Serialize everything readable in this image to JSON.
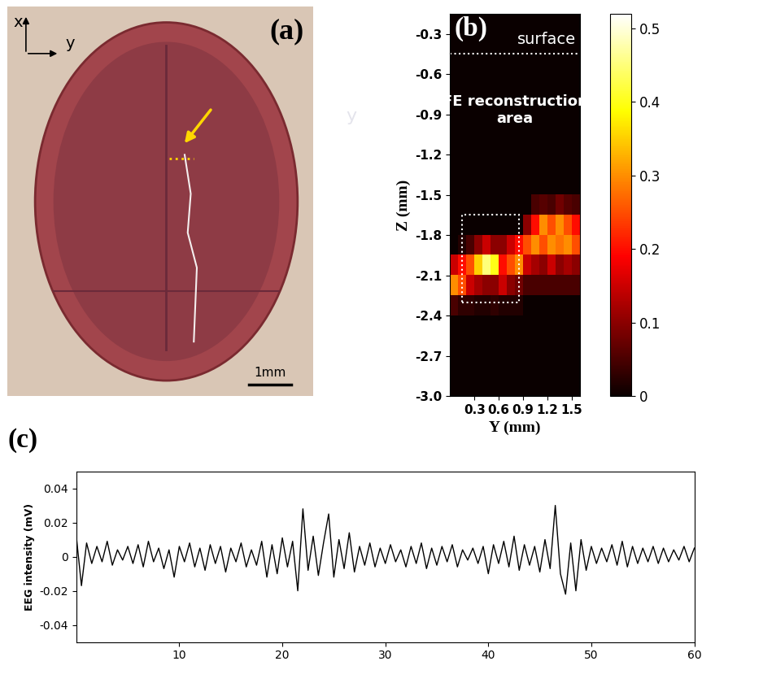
{
  "chart_data": [
    {
      "type": "image",
      "title": "(a)",
      "axis_labels": {
        "x": "x",
        "y": "y"
      },
      "scale_bar": "1mm",
      "annotations": [
        "y"
      ]
    },
    {
      "type": "heatmap",
      "title": "(b)",
      "x_label": "Y (mm)",
      "y_label": "Z (mm)",
      "xlim": [
        0,
        1.6
      ],
      "ylim": [
        -3.0,
        -0.15
      ],
      "xticks": [
        0.3,
        0.6,
        0.9,
        1.2,
        1.5
      ],
      "yticks": [
        -0.3,
        -0.6,
        -0.9,
        -1.2,
        -1.5,
        -1.8,
        -2.1,
        -2.4,
        -2.7,
        -3.0
      ],
      "annotations": [
        "surface",
        "FE reconstruction area"
      ],
      "surface_level": -0.45,
      "box": {
        "y": [
          0.15,
          0.85
        ],
        "z": [
          -2.3,
          -1.65
        ]
      },
      "colorbar": {
        "range": [
          0,
          0.52
        ],
        "ticks": [
          0,
          0.1,
          0.2,
          0.3,
          0.4,
          0.5
        ]
      },
      "cells": [
        [
          0,
          0,
          0,
          0,
          0,
          0,
          0,
          0,
          0,
          0,
          0,
          0,
          0,
          0,
          0,
          0
        ],
        [
          0,
          0,
          0,
          0,
          0,
          0,
          0,
          0,
          0,
          0,
          0,
          0,
          0,
          0,
          0,
          0
        ],
        [
          0,
          0,
          0,
          0,
          0,
          0,
          0,
          0,
          0,
          0,
          0,
          0,
          0,
          0,
          0,
          0
        ],
        [
          0,
          0,
          0,
          0,
          0,
          0,
          0,
          0,
          0,
          0,
          0,
          0,
          0,
          0,
          0,
          0
        ],
        [
          0,
          0,
          0,
          0,
          0,
          0,
          0,
          0,
          0,
          0,
          0,
          0,
          0,
          0,
          0,
          0
        ],
        [
          0,
          0,
          0,
          0,
          0,
          0,
          0,
          0,
          0,
          0,
          0,
          0,
          0,
          0,
          0,
          0
        ],
        [
          0,
          0,
          0,
          0,
          0,
          0,
          0,
          0,
          0,
          0,
          0,
          0,
          0,
          0,
          0,
          0
        ],
        [
          0,
          0,
          0,
          0,
          0,
          0,
          0,
          0,
          0,
          0,
          0,
          0,
          0,
          0,
          0,
          0
        ],
        [
          0,
          0,
          0,
          0,
          0,
          0,
          0,
          0,
          0,
          0,
          0,
          0,
          0,
          0,
          0,
          0
        ],
        [
          0,
          0,
          0,
          0,
          0,
          0,
          0,
          0,
          0,
          0,
          0.05,
          0.06,
          0.05,
          0.08,
          0.06,
          0.05
        ],
        [
          0,
          0,
          0,
          0,
          0,
          0,
          0,
          0,
          0,
          0.1,
          0.2,
          0.3,
          0.25,
          0.3,
          0.25,
          0.2
        ],
        [
          0,
          0.02,
          0.05,
          0.1,
          0.15,
          0.1,
          0.1,
          0.15,
          0.2,
          0.25,
          0.3,
          0.25,
          0.3,
          0.28,
          0.3,
          0.25
        ],
        [
          0.15,
          0.2,
          0.25,
          0.35,
          0.45,
          0.4,
          0.2,
          0.25,
          0.3,
          0.15,
          0.12,
          0.1,
          0.15,
          0.1,
          0.12,
          0.1
        ],
        [
          0.3,
          0.25,
          0.15,
          0.12,
          0.1,
          0.1,
          0.15,
          0.1,
          0.08,
          0.05,
          0.05,
          0.05,
          0.05,
          0.05,
          0.05,
          0.05
        ],
        [
          0.05,
          0.03,
          0.03,
          0.02,
          0.02,
          0.03,
          0.02,
          0.02,
          0.02,
          0,
          0,
          0,
          0,
          0,
          0,
          0
        ],
        [
          0,
          0,
          0,
          0,
          0,
          0,
          0,
          0,
          0,
          0,
          0,
          0,
          0,
          0,
          0,
          0
        ],
        [
          0,
          0,
          0,
          0,
          0,
          0,
          0,
          0,
          0,
          0,
          0,
          0,
          0,
          0,
          0,
          0
        ],
        [
          0,
          0,
          0,
          0,
          0,
          0,
          0,
          0,
          0,
          0,
          0,
          0,
          0,
          0,
          0,
          0
        ],
        [
          0,
          0,
          0,
          0,
          0,
          0,
          0,
          0,
          0,
          0,
          0,
          0,
          0,
          0,
          0,
          0
        ]
      ]
    },
    {
      "type": "line",
      "title": "(c)",
      "y_label": "EEG intensity (mV)",
      "color": "#000000",
      "xlim": [
        0,
        60
      ],
      "ylim": [
        -0.05,
        0.05
      ],
      "xticks": [
        10,
        20,
        30,
        40,
        50,
        60
      ],
      "yticks": [
        -0.04,
        -0.02,
        0,
        0.02,
        0.04
      ],
      "x": [
        0,
        0.5,
        1,
        1.5,
        2,
        2.5,
        3,
        3.5,
        4,
        4.5,
        5,
        5.5,
        6,
        6.5,
        7,
        7.5,
        8,
        8.5,
        9,
        9.5,
        10,
        10.5,
        11,
        11.5,
        12,
        12.5,
        13,
        13.5,
        14,
        14.5,
        15,
        15.5,
        16,
        16.5,
        17,
        17.5,
        18,
        18.5,
        19,
        19.5,
        20,
        20.5,
        21,
        21.5,
        22,
        22.5,
        23,
        23.5,
        24,
        24.5,
        25,
        25.5,
        26,
        26.5,
        27,
        27.5,
        28,
        28.5,
        29,
        29.5,
        30,
        30.5,
        31,
        31.5,
        32,
        32.5,
        33,
        33.5,
        34,
        34.5,
        35,
        35.5,
        36,
        36.5,
        37,
        37.5,
        38,
        38.5,
        39,
        39.5,
        40,
        40.5,
        41,
        41.5,
        42,
        42.5,
        43,
        43.5,
        44,
        44.5,
        45,
        45.5,
        46,
        46.5,
        47,
        47.5,
        48,
        48.5,
        49,
        49.5,
        50,
        50.5,
        51,
        51.5,
        52,
        52.5,
        53,
        53.5,
        54,
        54.5,
        55,
        55.5,
        56,
        56.5,
        57,
        57.5,
        58,
        58.5,
        59,
        59.5,
        60
      ],
      "values": [
        0.012,
        -0.017,
        0.008,
        -0.004,
        0.006,
        -0.003,
        0.009,
        -0.005,
        0.004,
        -0.002,
        0.006,
        -0.004,
        0.007,
        -0.006,
        0.009,
        -0.003,
        0.005,
        -0.007,
        0.004,
        -0.012,
        0.006,
        -0.003,
        0.008,
        -0.006,
        0.005,
        -0.008,
        0.007,
        -0.004,
        0.006,
        -0.009,
        0.005,
        -0.003,
        0.008,
        -0.006,
        0.004,
        -0.005,
        0.009,
        -0.012,
        0.007,
        -0.01,
        0.011,
        -0.006,
        0.009,
        -0.02,
        0.028,
        -0.008,
        0.012,
        -0.011,
        0.008,
        0.025,
        -0.012,
        0.01,
        -0.007,
        0.014,
        -0.009,
        0.006,
        -0.005,
        0.008,
        -0.006,
        0.005,
        -0.004,
        0.007,
        -0.003,
        0.004,
        -0.006,
        0.006,
        -0.004,
        0.008,
        -0.007,
        0.005,
        -0.005,
        0.006,
        -0.003,
        0.007,
        -0.006,
        0.004,
        -0.002,
        0.005,
        -0.004,
        0.006,
        -0.01,
        0.007,
        -0.004,
        0.009,
        -0.006,
        0.012,
        -0.008,
        0.007,
        -0.005,
        0.006,
        -0.009,
        0.01,
        -0.007,
        0.03,
        -0.01,
        -0.022,
        0.008,
        -0.02,
        0.01,
        -0.008,
        0.006,
        -0.004,
        0.005,
        -0.003,
        0.007,
        -0.005,
        0.009,
        -0.006,
        0.006,
        -0.004,
        0.005,
        -0.003,
        0.006,
        -0.004,
        0.005,
        -0.003,
        0.004,
        -0.002,
        0.006,
        -0.003,
        0.005
      ]
    }
  ]
}
